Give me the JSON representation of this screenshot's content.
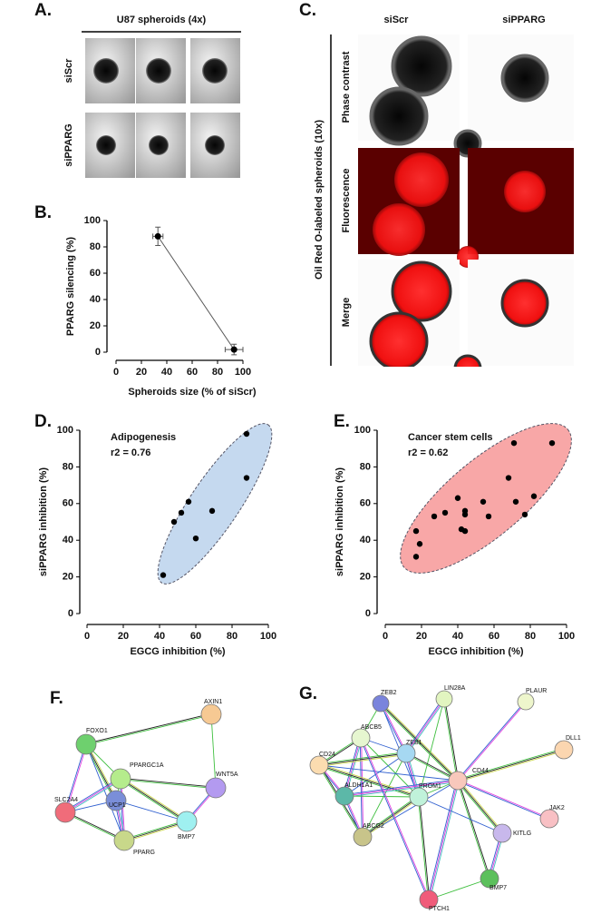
{
  "panels": {
    "A": {
      "label": "A.",
      "title": "U87 spheroids (4x)",
      "rows": [
        "siScr",
        "siPPARG"
      ]
    },
    "C": {
      "label": "C.",
      "columns": [
        "siScr",
        "siPPARG"
      ],
      "title": "Oil Red O-labeled spheroids (10x)",
      "rows": [
        "Phase contrast",
        "Fluorescence",
        "Merge"
      ]
    },
    "F": {
      "label": "F.",
      "nodes": [
        "FOXO1",
        "AXIN1",
        "PPARGC1A",
        "WNT5A",
        "SLC2A4",
        "UCP1",
        "BMP7",
        "PPARG"
      ]
    },
    "G": {
      "label": "G.",
      "nodes": [
        "ZEB2",
        "LIN28A",
        "PLAUR",
        "DLL1",
        "ABCB5",
        "ZEB1",
        "CD24",
        "CD44",
        "ALDH1A1",
        "PROM1",
        "JAK2",
        "KITLG",
        "ABCG2",
        "BMP7",
        "PTCH1"
      ]
    }
  },
  "chart_data": [
    {
      "type": "line",
      "label": "B.",
      "x": [
        33,
        93
      ],
      "y": [
        88,
        2
      ],
      "x_error": [
        4,
        7
      ],
      "y_error": [
        7,
        4
      ],
      "xlabel": "Spheroids size (% of siScr)",
      "ylabel": "PPARG silencing (%)",
      "xlim": [
        0,
        100
      ],
      "xticks": [
        0,
        20,
        40,
        60,
        80,
        100
      ],
      "ylim": [
        0,
        100
      ],
      "yticks": [
        0,
        20,
        40,
        60,
        80,
        100
      ],
      "color": "#000000"
    },
    {
      "type": "scatter",
      "label": "D.",
      "annotations": [
        "Adipogenesis",
        "r2 = 0.76"
      ],
      "x": [
        42,
        48,
        52,
        56,
        60,
        69,
        88,
        88
      ],
      "y": [
        21,
        50,
        55,
        61,
        41,
        56,
        74,
        98
      ],
      "xlabel": "EGCG inhibition (%)",
      "ylabel": "siPPARG inhibition (%)",
      "xlim": [
        0,
        100
      ],
      "xticks": [
        0,
        20,
        40,
        60,
        80,
        100
      ],
      "ylim": [
        0,
        100
      ],
      "yticks": [
        0,
        20,
        40,
        60,
        80,
        100
      ],
      "color": "#000000",
      "region_color": "#c5d9ef"
    },
    {
      "type": "scatter",
      "label": "E.",
      "annotations": [
        "Cancer stem cells",
        "r2 = 0.62"
      ],
      "x": [
        17,
        17,
        19,
        27,
        33,
        40,
        42,
        44,
        44,
        44,
        54,
        57,
        68,
        71,
        72,
        77,
        82,
        92
      ],
      "y": [
        31,
        45,
        38,
        53,
        55,
        63,
        46,
        54,
        45,
        56,
        61,
        53,
        74,
        93,
        61,
        54,
        64,
        93
      ],
      "xlabel": "EGCG inhibition (%)",
      "ylabel": "siPPARG inhibition (%)",
      "xlim": [
        0,
        100
      ],
      "xticks": [
        0,
        20,
        40,
        60,
        80,
        100
      ],
      "ylim": [
        0,
        100
      ],
      "yticks": [
        0,
        20,
        40,
        60,
        80,
        100
      ],
      "color": "#000000",
      "region_color": "#f8a7a7"
    }
  ]
}
